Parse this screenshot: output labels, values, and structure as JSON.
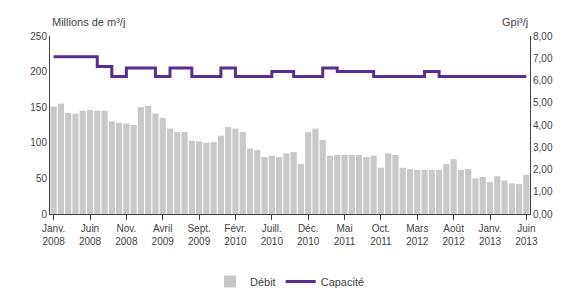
{
  "chart_data": {
    "type": "bar",
    "y_label": "Millions de m³/j",
    "y2_label": "Gpi³/j",
    "categories": [
      "Janv.\n2008",
      null,
      null,
      null,
      null,
      "Juin\n2008",
      null,
      null,
      null,
      null,
      "Nov.\n2008",
      null,
      null,
      null,
      null,
      "Avril\n2009",
      null,
      null,
      null,
      null,
      "Sept.\n2009",
      null,
      null,
      null,
      null,
      "Févr.\n2010",
      null,
      null,
      null,
      null,
      "Juill.\n2010",
      null,
      null,
      null,
      null,
      "Déc.\n2010",
      null,
      null,
      null,
      null,
      "Mai\n2011",
      null,
      null,
      null,
      null,
      "Oct.\n2011",
      null,
      null,
      null,
      null,
      "Mars\n2012",
      null,
      null,
      null,
      null,
      "Août\n2012",
      null,
      null,
      null,
      null,
      "Janv.\n2013",
      null,
      null,
      null,
      null,
      "Juin\n2013"
    ],
    "series": [
      {
        "name": "Débit",
        "type": "bar",
        "color": "#c8c8c8",
        "values": [
          151,
          155,
          142,
          141,
          145,
          146,
          145,
          145,
          130,
          128,
          127,
          125,
          150,
          152,
          141,
          135,
          120,
          115,
          115,
          103,
          102,
          100,
          101,
          110,
          122,
          120,
          115,
          92,
          90,
          80,
          82,
          80,
          85,
          87,
          70,
          115,
          120,
          104,
          82,
          83,
          83,
          83,
          83,
          80,
          82,
          65,
          85,
          83,
          65,
          63,
          62,
          62,
          62,
          62,
          70,
          77,
          62,
          63,
          50,
          52,
          45,
          53,
          47,
          43,
          42,
          55
        ]
      },
      {
        "name": "Capacité",
        "type": "line",
        "line_style": "step",
        "color": "#5b2d8e",
        "values": [
          221,
          221,
          221,
          221,
          221,
          221,
          207,
          207,
          193,
          193,
          205,
          205,
          205,
          205,
          193,
          193,
          205,
          205,
          205,
          193,
          193,
          193,
          193,
          205,
          205,
          193,
          193,
          193,
          193,
          193,
          200,
          200,
          200,
          193,
          193,
          193,
          193,
          205,
          205,
          200,
          200,
          200,
          200,
          200,
          193,
          193,
          193,
          193,
          193,
          193,
          193,
          200,
          200,
          193,
          193,
          193,
          193,
          193,
          193,
          193,
          193,
          193,
          193,
          193,
          193,
          193
        ]
      }
    ],
    "ylim": [
      0,
      250
    ],
    "yticks": [
      0,
      50,
      100,
      150,
      200,
      250
    ],
    "y2lim": [
      0.0,
      8.0
    ],
    "y2ticks": [
      {
        "value": 0.0,
        "label": "0,00"
      },
      {
        "value": 1.0,
        "label": "1,00"
      },
      {
        "value": 2.0,
        "label": "2,00"
      },
      {
        "value": 3.0,
        "label": "3,00"
      },
      {
        "value": 4.0,
        "label": "4,00"
      },
      {
        "value": 5.0,
        "label": "5,00"
      },
      {
        "value": 6.0,
        "label": "6,00"
      },
      {
        "value": 7.0,
        "label": "7,00"
      },
      {
        "value": 8.0,
        "label": "8,00"
      }
    ],
    "grid": false,
    "legend": "bottom"
  }
}
